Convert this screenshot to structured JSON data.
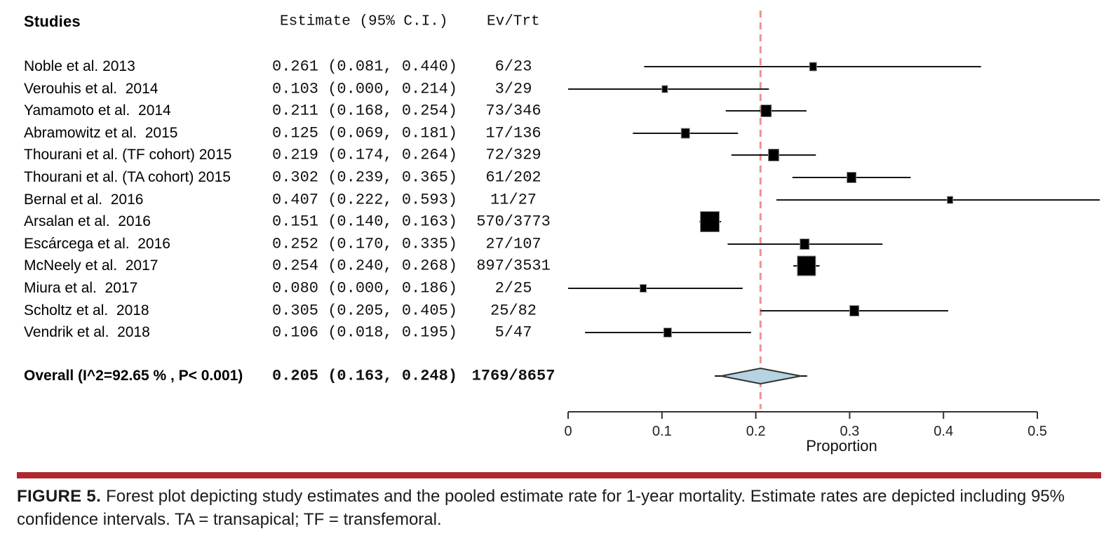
{
  "header": {
    "studies": "Studies",
    "estimate": "Estimate (95% C.I.)",
    "ev_trt": "Ev/Trt"
  },
  "chart_data": {
    "type": "forest",
    "proportion_axis": {
      "label": "Proportion",
      "tick_labels": [
        "0",
        "0.1",
        "0.2",
        "0.3",
        "0.4",
        "0.5"
      ],
      "tick_values": [
        0,
        0.1,
        0.2,
        0.3,
        0.4,
        0.5
      ],
      "range": [
        0,
        0.5
      ]
    },
    "pooled_reference_line": 0.205,
    "studies": [
      {
        "label": "Noble et al. 2013",
        "estimate": 0.261,
        "ci_low": 0.081,
        "ci_high": 0.44,
        "estimate_text": "0.261 (0.081, 0.440)",
        "ev_trt": "6/23",
        "marker_size": 10
      },
      {
        "label": "Verouhis et al.  2014",
        "estimate": 0.103,
        "ci_low": 0.0,
        "ci_high": 0.214,
        "estimate_text": "0.103 (0.000, 0.214)",
        "ev_trt": "3/29",
        "marker_size": 8
      },
      {
        "label": "Yamamoto et al.  2014",
        "estimate": 0.211,
        "ci_low": 0.168,
        "ci_high": 0.254,
        "estimate_text": "0.211 (0.168, 0.254)",
        "ev_trt": "73/346",
        "marker_size": 15
      },
      {
        "label": "Abramowitz et al.  2015",
        "estimate": 0.125,
        "ci_low": 0.069,
        "ci_high": 0.181,
        "estimate_text": "0.125 (0.069, 0.181)",
        "ev_trt": "17/136",
        "marker_size": 12
      },
      {
        "label": "Thourani et al. (TF cohort) 2015",
        "estimate": 0.219,
        "ci_low": 0.174,
        "ci_high": 0.264,
        "estimate_text": "0.219 (0.174, 0.264)",
        "ev_trt": "72/329",
        "marker_size": 15
      },
      {
        "label": "Thourani et al. (TA cohort) 2015",
        "estimate": 0.302,
        "ci_low": 0.239,
        "ci_high": 0.365,
        "estimate_text": "0.302 (0.239, 0.365)",
        "ev_trt": "61/202",
        "marker_size": 13
      },
      {
        "label": "Bernal et al.  2016",
        "estimate": 0.407,
        "ci_low": 0.222,
        "ci_high": 0.593,
        "estimate_text": "0.407 (0.222, 0.593)",
        "ev_trt": "11/27",
        "marker_size": 8
      },
      {
        "label": "Arsalan et al.  2016",
        "estimate": 0.151,
        "ci_low": 0.14,
        "ci_high": 0.163,
        "estimate_text": "0.151 (0.140, 0.163)",
        "ev_trt": "570/3773",
        "marker_size": 27
      },
      {
        "label": "Escárcega et al.  2016",
        "estimate": 0.252,
        "ci_low": 0.17,
        "ci_high": 0.335,
        "estimate_text": "0.252 (0.170, 0.335)",
        "ev_trt": "27/107",
        "marker_size": 13
      },
      {
        "label": "McNeely et al.  2017",
        "estimate": 0.254,
        "ci_low": 0.24,
        "ci_high": 0.268,
        "estimate_text": "0.254 (0.240, 0.268)",
        "ev_trt": "897/3531",
        "marker_size": 26
      },
      {
        "label": "Miura et al.  2017",
        "estimate": 0.08,
        "ci_low": 0.0,
        "ci_high": 0.186,
        "estimate_text": "0.080 (0.000, 0.186)",
        "ev_trt": "2/25",
        "marker_size": 9
      },
      {
        "label": "Scholtz et al.  2018",
        "estimate": 0.305,
        "ci_low": 0.205,
        "ci_high": 0.405,
        "estimate_text": "0.305 (0.205, 0.405)",
        "ev_trt": "25/82",
        "marker_size": 13
      },
      {
        "label": "Vendrik et al.  2018",
        "estimate": 0.106,
        "ci_low": 0.018,
        "ci_high": 0.195,
        "estimate_text": "0.106 (0.018, 0.195)",
        "ev_trt": "5/47",
        "marker_size": 11
      }
    ],
    "overall": {
      "label": "Overall (I^2=92.65 % , P< 0.001)",
      "estimate": 0.205,
      "ci_low": 0.163,
      "ci_high": 0.248,
      "estimate_text": "0.205 (0.163, 0.248)",
      "ev_trt": "1769/8657"
    }
  },
  "caption": {
    "label": "FIGURE 5.",
    "text": "Forest plot depicting study estimates and the pooled estimate rate for 1-year mortality. Estimate rates are depicted including 95% confidence intervals. TA = transapical; TF = transfemoral."
  },
  "colors": {
    "reference_line": "#f0918c",
    "diamond_fill": "#b5d3e0",
    "diamond_stroke": "#333333",
    "ci_line": "#151515",
    "marker_fill": "#000000",
    "marker_stroke": "#8a8a8a",
    "axis": "#333333",
    "rule_red": "#ae292e",
    "caption_text": "#1b1b1b"
  }
}
